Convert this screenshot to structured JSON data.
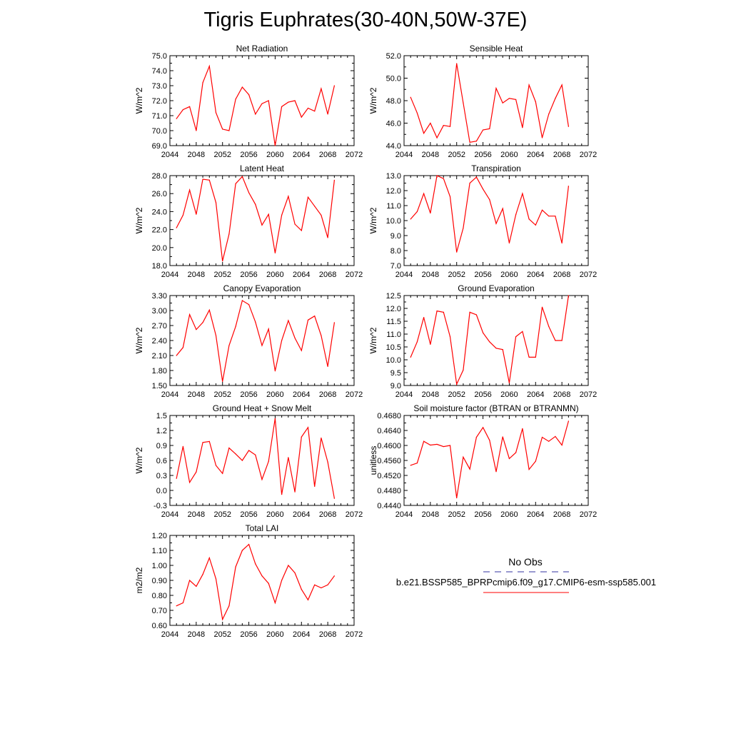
{
  "title": "Tigris Euphrates(30-40N,50W-37E)",
  "legend": {
    "obs_label": "No Obs",
    "model_label": "b.e21.BSSP585_BPRPcmip6.f09_g17.CMIP6-esm-ssp585.001",
    "obs_color": "#3333a0",
    "model_color": "#ff0000"
  },
  "chart_data": [
    {
      "type": "line",
      "title": "Net Radiation",
      "ylabel": "W/m^2",
      "xlim": [
        2044,
        2072
      ],
      "ylim": [
        69.0,
        75.0
      ],
      "xticks": [
        "2044",
        "2048",
        "2052",
        "2056",
        "2060",
        "2064",
        "2068",
        "2072"
      ],
      "yticks": [
        "69.0",
        "70.0",
        "71.0",
        "72.0",
        "73.0",
        "74.0",
        "75.0"
      ],
      "x": [
        2045,
        2046,
        2047,
        2048,
        2049,
        2050,
        2051,
        2052,
        2053,
        2054,
        2055,
        2056,
        2057,
        2058,
        2059,
        2060,
        2061,
        2062,
        2063,
        2064,
        2065,
        2066,
        2067,
        2068,
        2069
      ],
      "series": [
        {
          "color": "#ff0000",
          "values": [
            70.8,
            71.4,
            71.6,
            70.0,
            73.2,
            74.3,
            71.2,
            70.1,
            70.0,
            72.1,
            72.9,
            72.4,
            71.1,
            71.8,
            72.0,
            69.0,
            71.6,
            71.9,
            72.0,
            70.9,
            71.5,
            71.3,
            72.8,
            71.1,
            73.0
          ]
        }
      ]
    },
    {
      "type": "line",
      "title": "Sensible Heat",
      "ylabel": "W/m^2",
      "xlim": [
        2044,
        2072
      ],
      "ylim": [
        44.0,
        52.0
      ],
      "xticks": [
        "2044",
        "2048",
        "2052",
        "2056",
        "2060",
        "2064",
        "2068",
        "2072"
      ],
      "yticks": [
        "44.0",
        "46.0",
        "48.0",
        "50.0",
        "52.0"
      ],
      "x": [
        2045,
        2046,
        2047,
        2048,
        2049,
        2050,
        2051,
        2052,
        2053,
        2054,
        2055,
        2056,
        2057,
        2058,
        2059,
        2060,
        2061,
        2062,
        2063,
        2064,
        2065,
        2066,
        2067,
        2068,
        2069
      ],
      "series": [
        {
          "color": "#ff0000",
          "values": [
            48.3,
            46.9,
            45.1,
            46.0,
            44.7,
            45.8,
            45.7,
            51.3,
            47.8,
            44.3,
            44.4,
            45.4,
            45.5,
            49.1,
            47.8,
            48.2,
            48.1,
            45.6,
            49.4,
            47.9,
            44.7,
            46.8,
            48.2,
            49.4,
            45.7
          ]
        }
      ]
    },
    {
      "type": "line",
      "title": "Latent Heat",
      "ylabel": "W/m^2",
      "xlim": [
        2044,
        2072
      ],
      "ylim": [
        18.0,
        28.0
      ],
      "xticks": [
        "2044",
        "2048",
        "2052",
        "2056",
        "2060",
        "2064",
        "2068",
        "2072"
      ],
      "yticks": [
        "18.0",
        "20.0",
        "22.0",
        "24.0",
        "26.0",
        "28.0"
      ],
      "x": [
        2045,
        2046,
        2047,
        2048,
        2049,
        2050,
        2051,
        2052,
        2053,
        2054,
        2055,
        2056,
        2057,
        2058,
        2059,
        2060,
        2061,
        2062,
        2063,
        2064,
        2065,
        2066,
        2067,
        2068,
        2069
      ],
      "series": [
        {
          "color": "#ff0000",
          "values": [
            22.2,
            23.6,
            26.4,
            23.7,
            27.6,
            27.5,
            25.0,
            18.5,
            21.5,
            27.1,
            27.9,
            26.1,
            24.8,
            22.5,
            23.7,
            19.4,
            23.6,
            25.7,
            22.6,
            21.9,
            25.6,
            24.6,
            23.6,
            21.1,
            27.5
          ]
        }
      ]
    },
    {
      "type": "line",
      "title": "Transpiration",
      "ylabel": "W/m^2",
      "xlim": [
        2044,
        2072
      ],
      "ylim": [
        7.0,
        13.0
      ],
      "xticks": [
        "2044",
        "2048",
        "2052",
        "2056",
        "2060",
        "2064",
        "2068",
        "2072"
      ],
      "yticks": [
        "7.0",
        "8.0",
        "9.0",
        "10.0",
        "11.0",
        "12.0",
        "13.0"
      ],
      "x": [
        2045,
        2046,
        2047,
        2048,
        2049,
        2050,
        2051,
        2052,
        2053,
        2054,
        2055,
        2056,
        2057,
        2058,
        2059,
        2060,
        2061,
        2062,
        2063,
        2064,
        2065,
        2066,
        2067,
        2068,
        2069
      ],
      "series": [
        {
          "color": "#ff0000",
          "values": [
            10.1,
            10.6,
            11.8,
            10.5,
            13.0,
            12.8,
            11.6,
            7.9,
            9.5,
            12.5,
            12.9,
            12.1,
            11.4,
            9.8,
            10.8,
            8.5,
            10.4,
            11.8,
            10.1,
            9.7,
            10.7,
            10.3,
            10.3,
            8.5,
            12.3
          ]
        }
      ]
    },
    {
      "type": "line",
      "title": "Canopy Evaporation",
      "ylabel": "W/m^2",
      "xlim": [
        2044,
        2072
      ],
      "ylim": [
        1.5,
        3.3
      ],
      "xticks": [
        "2044",
        "2048",
        "2052",
        "2056",
        "2060",
        "2064",
        "2068",
        "2072"
      ],
      "yticks": [
        "1.50",
        "1.80",
        "2.10",
        "2.40",
        "2.70",
        "3.00",
        "3.30"
      ],
      "x": [
        2045,
        2046,
        2047,
        2048,
        2049,
        2050,
        2051,
        2052,
        2053,
        2054,
        2055,
        2056,
        2057,
        2058,
        2059,
        2060,
        2061,
        2062,
        2063,
        2064,
        2065,
        2066,
        2067,
        2068,
        2069
      ],
      "series": [
        {
          "color": "#ff0000",
          "values": [
            2.1,
            2.26,
            2.92,
            2.62,
            2.76,
            3.01,
            2.5,
            1.58,
            2.3,
            2.68,
            3.2,
            3.12,
            2.77,
            2.3,
            2.63,
            1.79,
            2.4,
            2.8,
            2.45,
            2.2,
            2.81,
            2.89,
            2.5,
            1.88,
            2.76
          ]
        }
      ]
    },
    {
      "type": "line",
      "title": "Ground Evaporation",
      "ylabel": "W/m^2",
      "xlim": [
        2044,
        2072
      ],
      "ylim": [
        9.0,
        12.5
      ],
      "xticks": [
        "2044",
        "2048",
        "2052",
        "2056",
        "2060",
        "2064",
        "2068",
        "2072"
      ],
      "yticks": [
        "9.0",
        "9.5",
        "10.0",
        "10.5",
        "11.0",
        "11.5",
        "12.0",
        "12.5"
      ],
      "x": [
        2045,
        2046,
        2047,
        2048,
        2049,
        2050,
        2051,
        2052,
        2053,
        2054,
        2055,
        2056,
        2057,
        2058,
        2059,
        2060,
        2061,
        2062,
        2063,
        2064,
        2065,
        2066,
        2067,
        2068,
        2069
      ],
      "series": [
        {
          "color": "#ff0000",
          "values": [
            10.1,
            10.7,
            11.65,
            10.6,
            11.9,
            11.85,
            10.9,
            9.05,
            9.6,
            11.85,
            11.75,
            11.05,
            10.7,
            10.45,
            10.4,
            9.1,
            10.9,
            11.1,
            10.1,
            10.1,
            12.05,
            11.3,
            10.75,
            10.75,
            12.5
          ]
        }
      ]
    },
    {
      "type": "line",
      "title": "Ground Heat + Snow Melt",
      "ylabel": "W/m^2",
      "xlim": [
        2044,
        2072
      ],
      "ylim": [
        -0.3,
        1.5
      ],
      "xticks": [
        "2044",
        "2048",
        "2052",
        "2056",
        "2060",
        "2064",
        "2068",
        "2072"
      ],
      "yticks": [
        "-0.3",
        "0.0",
        "0.3",
        "0.6",
        "0.9",
        "1.2",
        "1.5"
      ],
      "x": [
        2045,
        2046,
        2047,
        2048,
        2049,
        2050,
        2051,
        2052,
        2053,
        2054,
        2055,
        2056,
        2057,
        2058,
        2059,
        2060,
        2061,
        2062,
        2063,
        2064,
        2065,
        2066,
        2067,
        2068,
        2069
      ],
      "series": [
        {
          "color": "#ff0000",
          "values": [
            0.24,
            0.88,
            0.16,
            0.37,
            0.96,
            0.98,
            0.5,
            0.34,
            0.85,
            0.73,
            0.6,
            0.8,
            0.71,
            0.22,
            0.58,
            1.44,
            -0.08,
            0.66,
            -0.03,
            1.07,
            1.26,
            0.08,
            1.05,
            0.57,
            -0.16
          ]
        }
      ]
    },
    {
      "type": "line",
      "title": "Soil moisture factor (BTRAN or BTRANMN)",
      "ylabel": "unitless",
      "xlim": [
        2044,
        2072
      ],
      "ylim": [
        0.444,
        0.468
      ],
      "xticks": [
        "2044",
        "2048",
        "2052",
        "2056",
        "2060",
        "2064",
        "2068",
        "2072"
      ],
      "yticks": [
        "0.4440",
        "0.4480",
        "0.4520",
        "0.4560",
        "0.4600",
        "0.4640",
        "0.4680"
      ],
      "x": [
        2045,
        2046,
        2047,
        2048,
        2049,
        2050,
        2051,
        2052,
        2053,
        2054,
        2055,
        2056,
        2057,
        2058,
        2059,
        2060,
        2061,
        2062,
        2063,
        2064,
        2065,
        2066,
        2067,
        2068,
        2069
      ],
      "series": [
        {
          "color": "#ff0000",
          "values": [
            0.4547,
            0.4553,
            0.4611,
            0.4601,
            0.4603,
            0.4597,
            0.46,
            0.446,
            0.4569,
            0.4537,
            0.4622,
            0.4648,
            0.4614,
            0.453,
            0.4623,
            0.4565,
            0.4581,
            0.4645,
            0.4536,
            0.4558,
            0.4622,
            0.4611,
            0.4624,
            0.4601,
            0.4665
          ]
        }
      ]
    },
    {
      "type": "line",
      "title": "Total LAI",
      "ylabel": "m2/m2",
      "xlim": [
        2044,
        2072
      ],
      "ylim": [
        0.6,
        1.2
      ],
      "xticks": [
        "2044",
        "2048",
        "2052",
        "2056",
        "2060",
        "2064",
        "2068",
        "2072"
      ],
      "yticks": [
        "0.60",
        "0.70",
        "0.80",
        "0.90",
        "1.00",
        "1.10",
        "1.20"
      ],
      "x": [
        2045,
        2046,
        2047,
        2048,
        2049,
        2050,
        2051,
        2052,
        2053,
        2054,
        2055,
        2056,
        2057,
        2058,
        2059,
        2060,
        2061,
        2062,
        2063,
        2064,
        2065,
        2066,
        2067,
        2068,
        2069
      ],
      "series": [
        {
          "color": "#ff0000",
          "values": [
            0.73,
            0.75,
            0.9,
            0.86,
            0.94,
            1.05,
            0.91,
            0.64,
            0.73,
            0.99,
            1.1,
            1.14,
            1.01,
            0.93,
            0.88,
            0.75,
            0.9,
            1.0,
            0.95,
            0.84,
            0.77,
            0.87,
            0.85,
            0.87,
            0.93
          ]
        }
      ]
    }
  ]
}
